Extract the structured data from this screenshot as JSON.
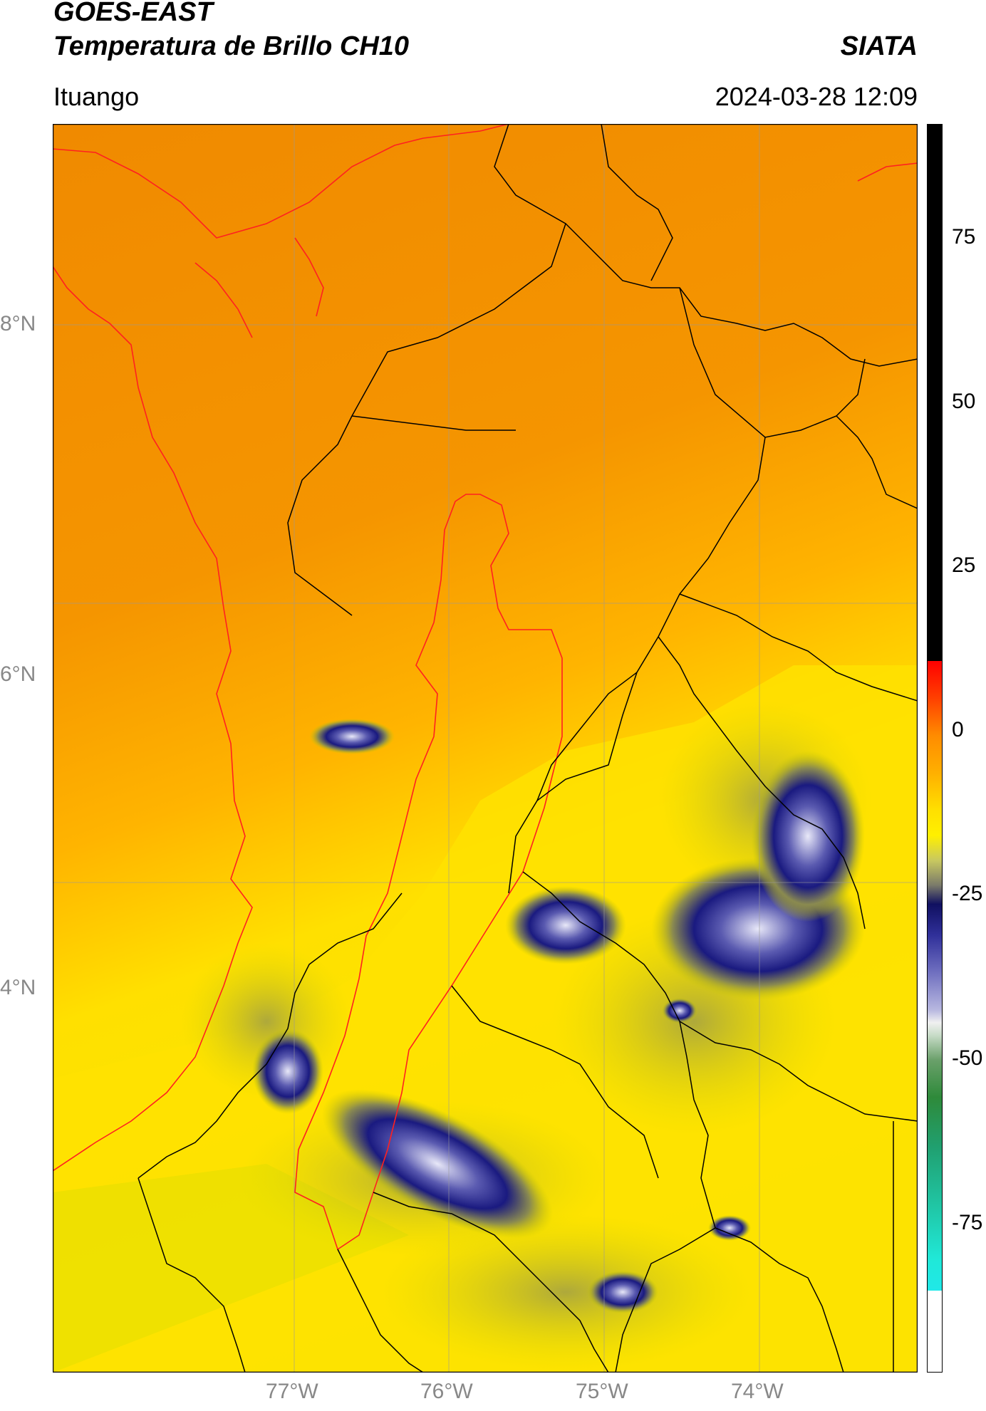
{
  "header": {
    "satellite": "GOES-EAST",
    "product": "Temperatura de Brillo CH10",
    "organization": "SIATA",
    "region": "Ituango",
    "datetime": "2024-03-28 12:09"
  },
  "map": {
    "lat_labels": [
      "8°N",
      "6°N",
      "4°N"
    ],
    "lon_labels": [
      "77°W",
      "76°W",
      "75°W",
      "74°W"
    ],
    "colors": {
      "ocean_warm": "#F08A00",
      "land_warm": "#FFA800",
      "land_cool": "#FFE800",
      "cloud_mid": "#9A9A4A",
      "cloud_deep": "#1A1A80",
      "cloud_top": "#E8E8F8",
      "boundary": "#000000",
      "highlight_boundary": "#FF2020"
    }
  },
  "colorbar": {
    "ticks": [
      "75",
      "50",
      "25",
      "0",
      "-25",
      "-50",
      "-75"
    ]
  }
}
